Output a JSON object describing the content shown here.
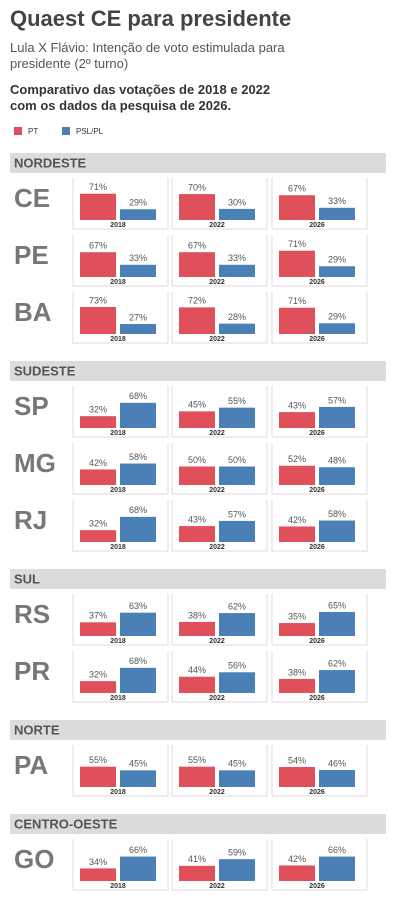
{
  "chart_data": {
    "type": "bar",
    "title": "Quaest CE para presidente",
    "subtitle": "Lula X Flávio: Intenção de voto estimulada para presidente (2º turno)",
    "note": "Comparativo das votações de 2018 e 2022 com os dados da pesquisa de 2026.",
    "series": [
      {
        "name": "PT",
        "color": "#e0505a"
      },
      {
        "name": "PSL/PL",
        "color": "#4a80b5"
      }
    ],
    "regions": [
      {
        "name": "NORDESTE",
        "states": [
          {
            "name": "CE",
            "panels": [
              {
                "category": "2018",
                "values": [
                  71,
                  29
                ],
                "value_labels": [
                  "71%",
                  "29%"
                ]
              },
              {
                "category": "2022",
                "values": [
                  70,
                  30
                ],
                "value_labels": [
                  "70%",
                  "30%"
                ]
              },
              {
                "category": "2026",
                "values": [
                  67,
                  33
                ],
                "value_labels": [
                  "67%",
                  "33%"
                ]
              }
            ]
          },
          {
            "name": "PE",
            "panels": [
              {
                "category": "2018",
                "values": [
                  67,
                  33
                ],
                "value_labels": [
                  "67%",
                  "33%"
                ]
              },
              {
                "category": "2022",
                "values": [
                  67,
                  33
                ],
                "value_labels": [
                  "67%",
                  "33%"
                ]
              },
              {
                "category": "2026",
                "values": [
                  71,
                  29
                ],
                "value_labels": [
                  "71%",
                  "29%"
                ]
              }
            ]
          },
          {
            "name": "BA",
            "panels": [
              {
                "category": "2018",
                "values": [
                  73,
                  27
                ],
                "value_labels": [
                  "73%",
                  "27%"
                ]
              },
              {
                "category": "2022",
                "values": [
                  72,
                  28
                ],
                "value_labels": [
                  "72%",
                  "28%"
                ]
              },
              {
                "category": "2026",
                "values": [
                  71,
                  29
                ],
                "value_labels": [
                  "71%",
                  "29%"
                ]
              }
            ]
          }
        ]
      },
      {
        "name": "SUDESTE",
        "states": [
          {
            "name": "SP",
            "panels": [
              {
                "category": "2018",
                "values": [
                  32,
                  68
                ],
                "value_labels": [
                  "32%",
                  "68%"
                ]
              },
              {
                "category": "2022",
                "values": [
                  45,
                  55
                ],
                "value_labels": [
                  "45%",
                  "55%"
                ]
              },
              {
                "category": "2026",
                "values": [
                  43,
                  57
                ],
                "value_labels": [
                  "43%",
                  "57%"
                ]
              }
            ]
          },
          {
            "name": "MG",
            "panels": [
              {
                "category": "2018",
                "values": [
                  42,
                  58
                ],
                "value_labels": [
                  "42%",
                  "58%"
                ]
              },
              {
                "category": "2022",
                "values": [
                  50,
                  50
                ],
                "value_labels": [
                  "50%",
                  "50%"
                ]
              },
              {
                "category": "2026",
                "values": [
                  52,
                  48
                ],
                "value_labels": [
                  "52%",
                  "48%"
                ]
              }
            ]
          },
          {
            "name": "RJ",
            "panels": [
              {
                "category": "2018",
                "values": [
                  32,
                  68
                ],
                "value_labels": [
                  "32%",
                  "68%"
                ]
              },
              {
                "category": "2022",
                "values": [
                  43,
                  57
                ],
                "value_labels": [
                  "43%",
                  "57%"
                ]
              },
              {
                "category": "2026",
                "values": [
                  42,
                  58
                ],
                "value_labels": [
                  "42%",
                  "58%"
                ]
              }
            ]
          }
        ]
      },
      {
        "name": "SUL",
        "states": [
          {
            "name": "RS",
            "panels": [
              {
                "category": "2018",
                "values": [
                  37,
                  63
                ],
                "value_labels": [
                  "37%",
                  "63%"
                ]
              },
              {
                "category": "2022",
                "values": [
                  38,
                  62
                ],
                "value_labels": [
                  "38%",
                  "62%"
                ]
              },
              {
                "category": "2026",
                "values": [
                  35,
                  65
                ],
                "value_labels": [
                  "35%",
                  "65%"
                ]
              }
            ]
          },
          {
            "name": "PR",
            "panels": [
              {
                "category": "2018",
                "values": [
                  32,
                  68
                ],
                "value_labels": [
                  "32%",
                  "68%"
                ]
              },
              {
                "category": "2022",
                "values": [
                  44,
                  56
                ],
                "value_labels": [
                  "44%",
                  "56%"
                ]
              },
              {
                "category": "2026",
                "values": [
                  38,
                  62
                ],
                "value_labels": [
                  "38%",
                  "62%"
                ]
              }
            ]
          }
        ]
      },
      {
        "name": "NORTE",
        "states": [
          {
            "name": "PA",
            "panels": [
              {
                "category": "2018",
                "values": [
                  55,
                  45
                ],
                "value_labels": [
                  "55%",
                  "45%"
                ]
              },
              {
                "category": "2022",
                "values": [
                  55,
                  45
                ],
                "value_labels": [
                  "55%",
                  "45%"
                ]
              },
              {
                "category": "2026",
                "values": [
                  54,
                  46
                ],
                "value_labels": [
                  "54%",
                  "46%"
                ]
              }
            ]
          }
        ]
      },
      {
        "name": "CENTRO-OESTE",
        "states": [
          {
            "name": "GO",
            "panels": [
              {
                "category": "2018",
                "values": [
                  34,
                  66
                ],
                "value_labels": [
                  "34%",
                  "66%"
                ]
              },
              {
                "category": "2022",
                "values": [
                  41,
                  59
                ],
                "value_labels": [
                  "41%",
                  "59%"
                ]
              },
              {
                "category": "2026",
                "values": [
                  42,
                  66
                ],
                "value_labels": [
                  "42%",
                  "66%"
                ]
              }
            ]
          }
        ]
      }
    ]
  }
}
